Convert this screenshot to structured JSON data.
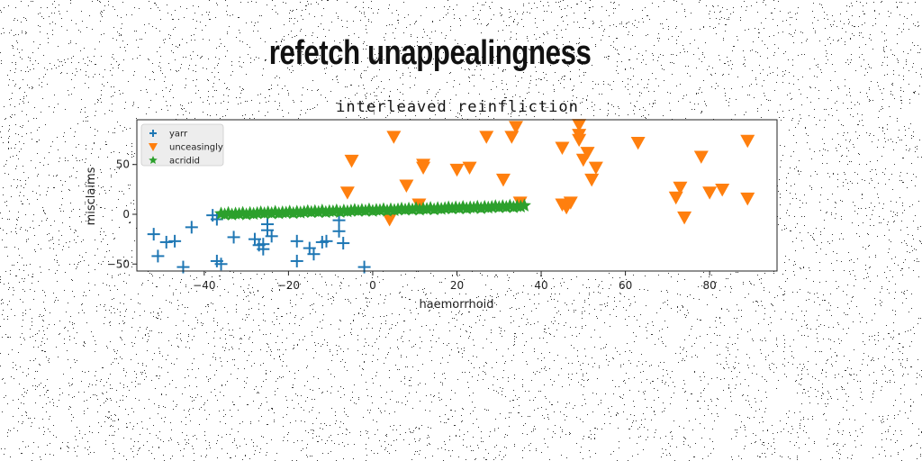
{
  "main_title": "refetch unappealingness",
  "chart_data": {
    "type": "scatter",
    "title": "interleaved reinfliction",
    "xlabel": "haemorrhoid",
    "ylabel": "misclaims",
    "xlim": [
      -56,
      96
    ],
    "ylim": [
      -57,
      95
    ],
    "xticks": [
      -40,
      -20,
      0,
      20,
      40,
      60,
      80
    ],
    "xtick_labels": [
      "−40",
      "−20",
      "0",
      "20",
      "40",
      "60",
      "80"
    ],
    "yticks": [
      -50,
      0,
      50
    ],
    "ytick_labels": [
      "−50",
      "0",
      "50"
    ],
    "grid": false,
    "legend_position": "top-left",
    "series": [
      {
        "name": "yarr",
        "marker": "plus",
        "color": "#1f77b4",
        "points": [
          [
            -52,
            -20
          ],
          [
            -51,
            -42
          ],
          [
            -49,
            -28
          ],
          [
            -47,
            -27
          ],
          [
            -45,
            -53
          ],
          [
            -43,
            -13
          ],
          [
            -38,
            -1
          ],
          [
            -37,
            -5
          ],
          [
            -37,
            -47
          ],
          [
            -36,
            -50
          ],
          [
            -33,
            -23
          ],
          [
            -28,
            -25
          ],
          [
            -27,
            -31
          ],
          [
            -26,
            -35
          ],
          [
            -26,
            -30
          ],
          [
            -25,
            -10
          ],
          [
            -25,
            -16
          ],
          [
            -24,
            -22
          ],
          [
            -18,
            -27
          ],
          [
            -18,
            -47
          ],
          [
            -15,
            -34
          ],
          [
            -14,
            -40
          ],
          [
            -12,
            -28
          ],
          [
            -11,
            -27
          ],
          [
            -8,
            -6
          ],
          [
            -8,
            -17
          ],
          [
            -7,
            -29
          ],
          [
            -2,
            -53
          ]
        ]
      },
      {
        "name": "unceasingly",
        "marker": "triangle-down",
        "color": "#ff7f0e",
        "points": [
          [
            -6,
            22
          ],
          [
            -5,
            54
          ],
          [
            4,
            -5
          ],
          [
            5,
            78
          ],
          [
            8,
            29
          ],
          [
            11,
            10
          ],
          [
            12,
            47
          ],
          [
            12,
            50
          ],
          [
            20,
            45
          ],
          [
            23,
            47
          ],
          [
            27,
            78
          ],
          [
            31,
            35
          ],
          [
            33,
            78
          ],
          [
            34,
            88
          ],
          [
            35,
            12
          ],
          [
            45,
            67
          ],
          [
            45,
            10
          ],
          [
            46,
            7
          ],
          [
            47,
            12
          ],
          [
            49,
            90
          ],
          [
            49,
            75
          ],
          [
            49,
            80
          ],
          [
            50,
            55
          ],
          [
            51,
            62
          ],
          [
            52,
            35
          ],
          [
            53,
            47
          ],
          [
            63,
            72
          ],
          [
            72,
            17
          ],
          [
            73,
            27
          ],
          [
            74,
            -3
          ],
          [
            78,
            58
          ],
          [
            80,
            22
          ],
          [
            83,
            25
          ],
          [
            89,
            74
          ],
          [
            89,
            16
          ]
        ]
      },
      {
        "name": "acridid",
        "marker": "star",
        "color": "#2ca02c",
        "x_start": -36,
        "x_end": 36,
        "count": 85,
        "y_start": 0,
        "y_end": 8,
        "y_jitter": [
          0.6,
          -0.4,
          0.9,
          -0.7,
          0.2,
          -0.2,
          0.7,
          -0.9,
          0.4,
          -0.5,
          0.1,
          0.8,
          -0.3
        ]
      }
    ]
  }
}
